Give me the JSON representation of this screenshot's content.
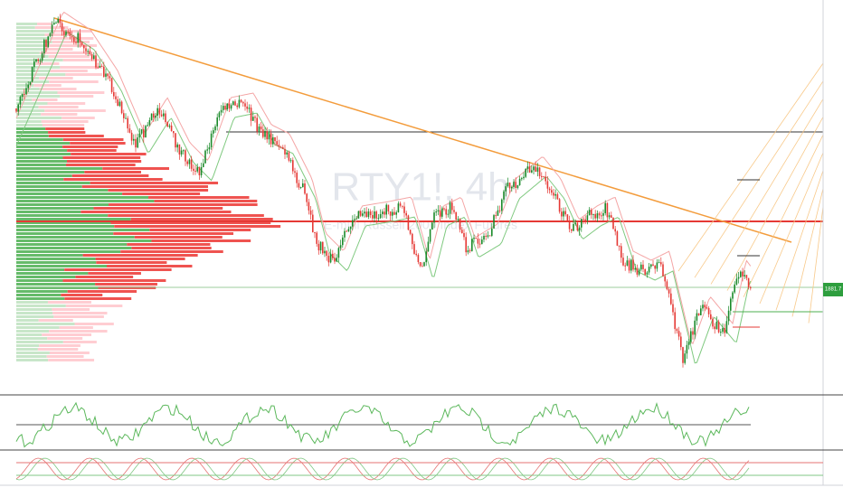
{
  "chart": {
    "watermark": "RTY1!, 4h",
    "description": "E-mini Russell 2000 Index Futures",
    "last_price": "1881.7"
  }
}
